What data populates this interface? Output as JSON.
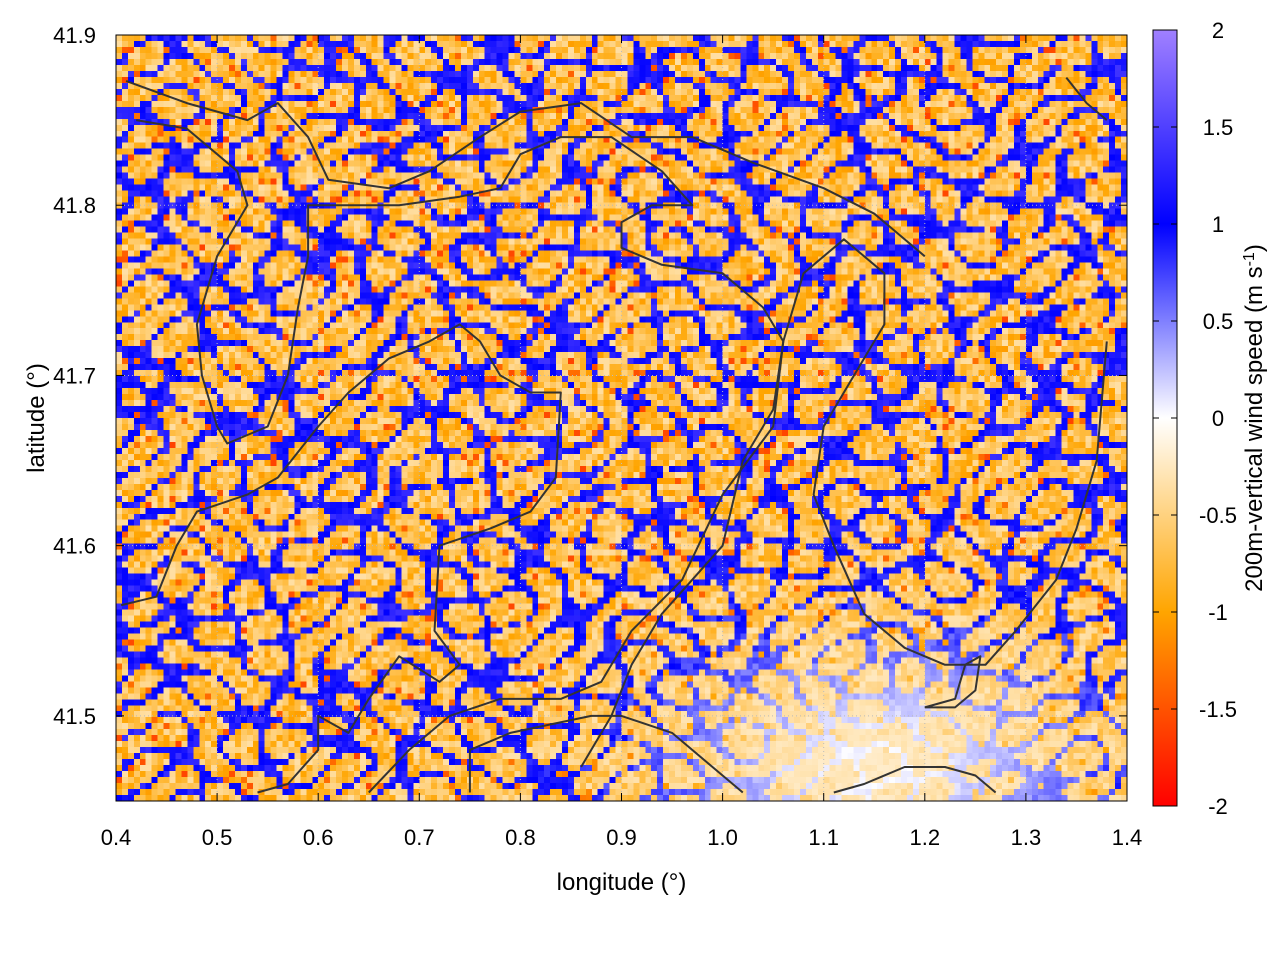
{
  "chart_data": {
    "type": "heatmap",
    "title": "",
    "xlabel": "longitude (°)",
    "ylabel": "latitude (°)",
    "xlim": [
      0.4,
      1.4
    ],
    "ylim": [
      41.45,
      41.9
    ],
    "x_ticks": [
      "0.4",
      "0.5",
      "0.6",
      "0.7",
      "0.8",
      "0.9",
      "1.0",
      "1.1",
      "1.2",
      "1.3",
      "1.4"
    ],
    "y_ticks": [
      "41.5",
      "41.6",
      "41.7",
      "41.8",
      "41.9"
    ],
    "grid": true,
    "colorbar": {
      "label_main": "200m-vertical wind speed (m s",
      "label_sup": "-1",
      "label_end": ")",
      "range": [
        -2,
        2
      ],
      "ticks": [
        "2",
        "1.5",
        "1",
        "0.5",
        "0",
        "-0.5",
        "-1",
        "-1.5",
        "-2"
      ],
      "stops": [
        {
          "value": -2,
          "color": "#ff0000"
        },
        {
          "value": -1,
          "color": "#ffa500"
        },
        {
          "value": 0,
          "color": "#ffffff"
        },
        {
          "value": 1,
          "color": "#0000ff"
        },
        {
          "value": 2,
          "color": "#a080ff"
        }
      ]
    },
    "contour_color": "#333333",
    "contours": [
      [
        [
          0.41,
          41.873
        ],
        [
          0.47,
          41.86
        ],
        [
          0.53,
          41.85
        ],
        [
          0.56,
          41.86
        ],
        [
          0.59,
          41.84
        ],
        [
          0.61,
          41.815
        ],
        [
          0.67,
          41.81
        ],
        [
          0.71,
          41.82
        ],
        [
          0.76,
          41.84
        ],
        [
          0.8,
          41.855
        ],
        [
          0.86,
          41.86
        ],
        [
          0.91,
          41.84
        ],
        [
          0.97,
          41.84
        ],
        [
          1.03,
          41.825
        ],
        [
          1.1,
          41.81
        ],
        [
          1.15,
          41.795
        ],
        [
          1.2,
          41.77
        ]
      ],
      [
        [
          0.42,
          41.85
        ],
        [
          0.47,
          41.845
        ],
        [
          0.52,
          41.82
        ],
        [
          0.53,
          41.8
        ],
        [
          0.5,
          41.77
        ],
        [
          0.48,
          41.73
        ],
        [
          0.485,
          41.7
        ],
        [
          0.5,
          41.67
        ],
        [
          0.51,
          41.66
        ],
        [
          0.55,
          41.67
        ],
        [
          0.57,
          41.7
        ],
        [
          0.58,
          41.74
        ],
        [
          0.59,
          41.77
        ],
        [
          0.59,
          41.8
        ],
        [
          0.63,
          41.8
        ],
        [
          0.68,
          41.8
        ],
        [
          0.74,
          41.805
        ],
        [
          0.78,
          41.81
        ],
        [
          0.8,
          41.83
        ],
        [
          0.84,
          41.84
        ],
        [
          0.89,
          41.84
        ],
        [
          0.94,
          41.82
        ],
        [
          0.97,
          41.8
        ],
        [
          0.93,
          41.8
        ],
        [
          0.9,
          41.79
        ],
        [
          0.9,
          41.775
        ],
        [
          0.94,
          41.765
        ],
        [
          1.0,
          41.76
        ],
        [
          1.04,
          41.74
        ],
        [
          1.06,
          41.72
        ],
        [
          1.05,
          41.68
        ],
        [
          1.02,
          41.65
        ],
        [
          1.0,
          41.6
        ],
        [
          0.97,
          41.58
        ],
        [
          0.94,
          41.56
        ],
        [
          0.91,
          41.53
        ],
        [
          0.89,
          41.5
        ],
        [
          0.86,
          41.47
        ]
      ],
      [
        [
          0.405,
          41.565
        ],
        [
          0.44,
          41.57
        ],
        [
          0.46,
          41.6
        ],
        [
          0.48,
          41.62
        ],
        [
          0.53,
          41.63
        ],
        [
          0.56,
          41.64
        ],
        [
          0.6,
          41.67
        ],
        [
          0.63,
          41.69
        ],
        [
          0.67,
          41.71
        ],
        [
          0.71,
          41.72
        ],
        [
          0.74,
          41.73
        ],
        [
          0.76,
          41.72
        ],
        [
          0.78,
          41.7
        ],
        [
          0.81,
          41.69
        ],
        [
          0.84,
          41.69
        ],
        [
          0.835,
          41.64
        ],
        [
          0.81,
          41.62
        ],
        [
          0.77,
          41.61
        ],
        [
          0.72,
          41.6
        ],
        [
          0.715,
          41.55
        ],
        [
          0.74,
          41.53
        ],
        [
          0.72,
          41.52
        ],
        [
          0.68,
          41.535
        ],
        [
          0.65,
          41.51
        ],
        [
          0.63,
          41.49
        ],
        [
          0.6,
          41.5
        ],
        [
          0.6,
          41.48
        ],
        [
          0.57,
          41.46
        ],
        [
          0.54,
          41.455
        ]
      ],
      [
        [
          0.65,
          41.455
        ],
        [
          0.69,
          41.48
        ],
        [
          0.73,
          41.5
        ],
        [
          0.78,
          41.51
        ],
        [
          0.84,
          41.51
        ],
        [
          0.88,
          41.52
        ],
        [
          0.91,
          41.55
        ],
        [
          0.96,
          41.58
        ],
        [
          1.0,
          41.63
        ],
        [
          1.05,
          41.67
        ],
        [
          1.06,
          41.72
        ],
        [
          1.08,
          41.76
        ],
        [
          1.12,
          41.78
        ],
        [
          1.16,
          41.76
        ],
        [
          1.16,
          41.73
        ],
        [
          1.13,
          41.7
        ],
        [
          1.1,
          41.67
        ],
        [
          1.09,
          41.63
        ],
        [
          1.11,
          41.6
        ],
        [
          1.14,
          41.56
        ],
        [
          1.18,
          41.54
        ],
        [
          1.22,
          41.53
        ],
        [
          1.26,
          41.53
        ],
        [
          1.29,
          41.55
        ],
        [
          1.33,
          41.58
        ],
        [
          1.35,
          41.61
        ],
        [
          1.37,
          41.65
        ],
        [
          1.38,
          41.72
        ]
      ],
      [
        [
          0.75,
          41.455
        ],
        [
          0.75,
          41.48
        ],
        [
          0.79,
          41.49
        ],
        [
          0.83,
          41.495
        ],
        [
          0.87,
          41.5
        ],
        [
          0.9,
          41.5
        ],
        [
          0.95,
          41.49
        ],
        [
          0.99,
          41.47
        ],
        [
          1.02,
          41.455
        ]
      ],
      [
        [
          1.11,
          41.455
        ],
        [
          1.14,
          41.46
        ],
        [
          1.18,
          41.47
        ],
        [
          1.22,
          41.47
        ],
        [
          1.25,
          41.465
        ],
        [
          1.27,
          41.455
        ]
      ],
      [
        [
          1.2,
          41.505
        ],
        [
          1.23,
          41.51
        ],
        [
          1.24,
          41.53
        ],
        [
          1.255,
          41.535
        ],
        [
          1.25,
          41.515
        ],
        [
          1.23,
          41.505
        ],
        [
          1.2,
          41.505
        ]
      ],
      [
        [
          1.34,
          41.875
        ],
        [
          1.36,
          41.86
        ],
        [
          1.38,
          41.85
        ]
      ]
    ]
  }
}
